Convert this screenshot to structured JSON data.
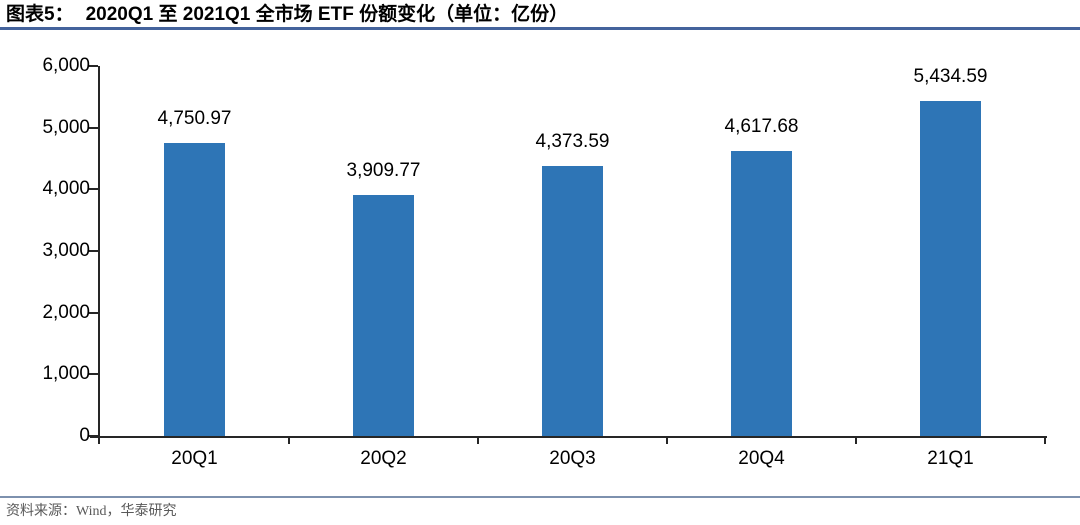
{
  "header": {
    "figure_label": "图表5：",
    "title": "2020Q1 至 2021Q1 全市场 ETF 份额变化（单位：亿份）"
  },
  "footer": {
    "source": "资料来源：Wind，华泰研究"
  },
  "colors": {
    "bar": "#2E75B6",
    "axis": "#262626",
    "label_text": "#000000",
    "header_rule": "#44639C",
    "footer_rule": "#7D91AE",
    "source_text": "#595959"
  },
  "chart_data": {
    "type": "bar",
    "title": "2020Q1 至 2021Q1 全市场 ETF 份额变化（单位：亿份）",
    "categories": [
      "20Q1",
      "20Q2",
      "20Q3",
      "20Q4",
      "21Q1"
    ],
    "values": [
      4750.97,
      3909.77,
      4373.59,
      4617.68,
      5434.59
    ],
    "value_labels": [
      "4,750.97",
      "3,909.77",
      "4,373.59",
      "4,617.68",
      "5,434.59"
    ],
    "xlabel": "",
    "ylabel": "",
    "unit": "亿份",
    "ylim": [
      0,
      6000
    ],
    "yticks": [
      0,
      1000,
      2000,
      3000,
      4000,
      5000,
      6000
    ],
    "ytick_labels": [
      "0",
      "1,000",
      "2,000",
      "3,000",
      "4,000",
      "5,000",
      "6,000"
    ],
    "grid": false,
    "legend": false,
    "bar_color": "#2E75B6"
  }
}
